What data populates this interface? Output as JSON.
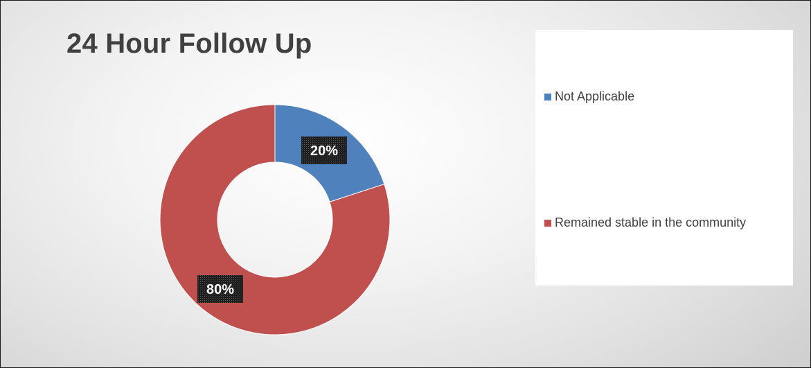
{
  "chart_data": {
    "type": "pie",
    "variant": "donut",
    "title": "24 Hour Follow Up",
    "categories": [
      "Not Applicable",
      "Remained stable in the community"
    ],
    "values": [
      20,
      80
    ],
    "data_labels": [
      "20%",
      "80%"
    ],
    "colors": [
      "#4f81bd",
      "#c0504d"
    ],
    "legend_position": "right",
    "data_label_style": "dark patterned box, white bold text"
  }
}
